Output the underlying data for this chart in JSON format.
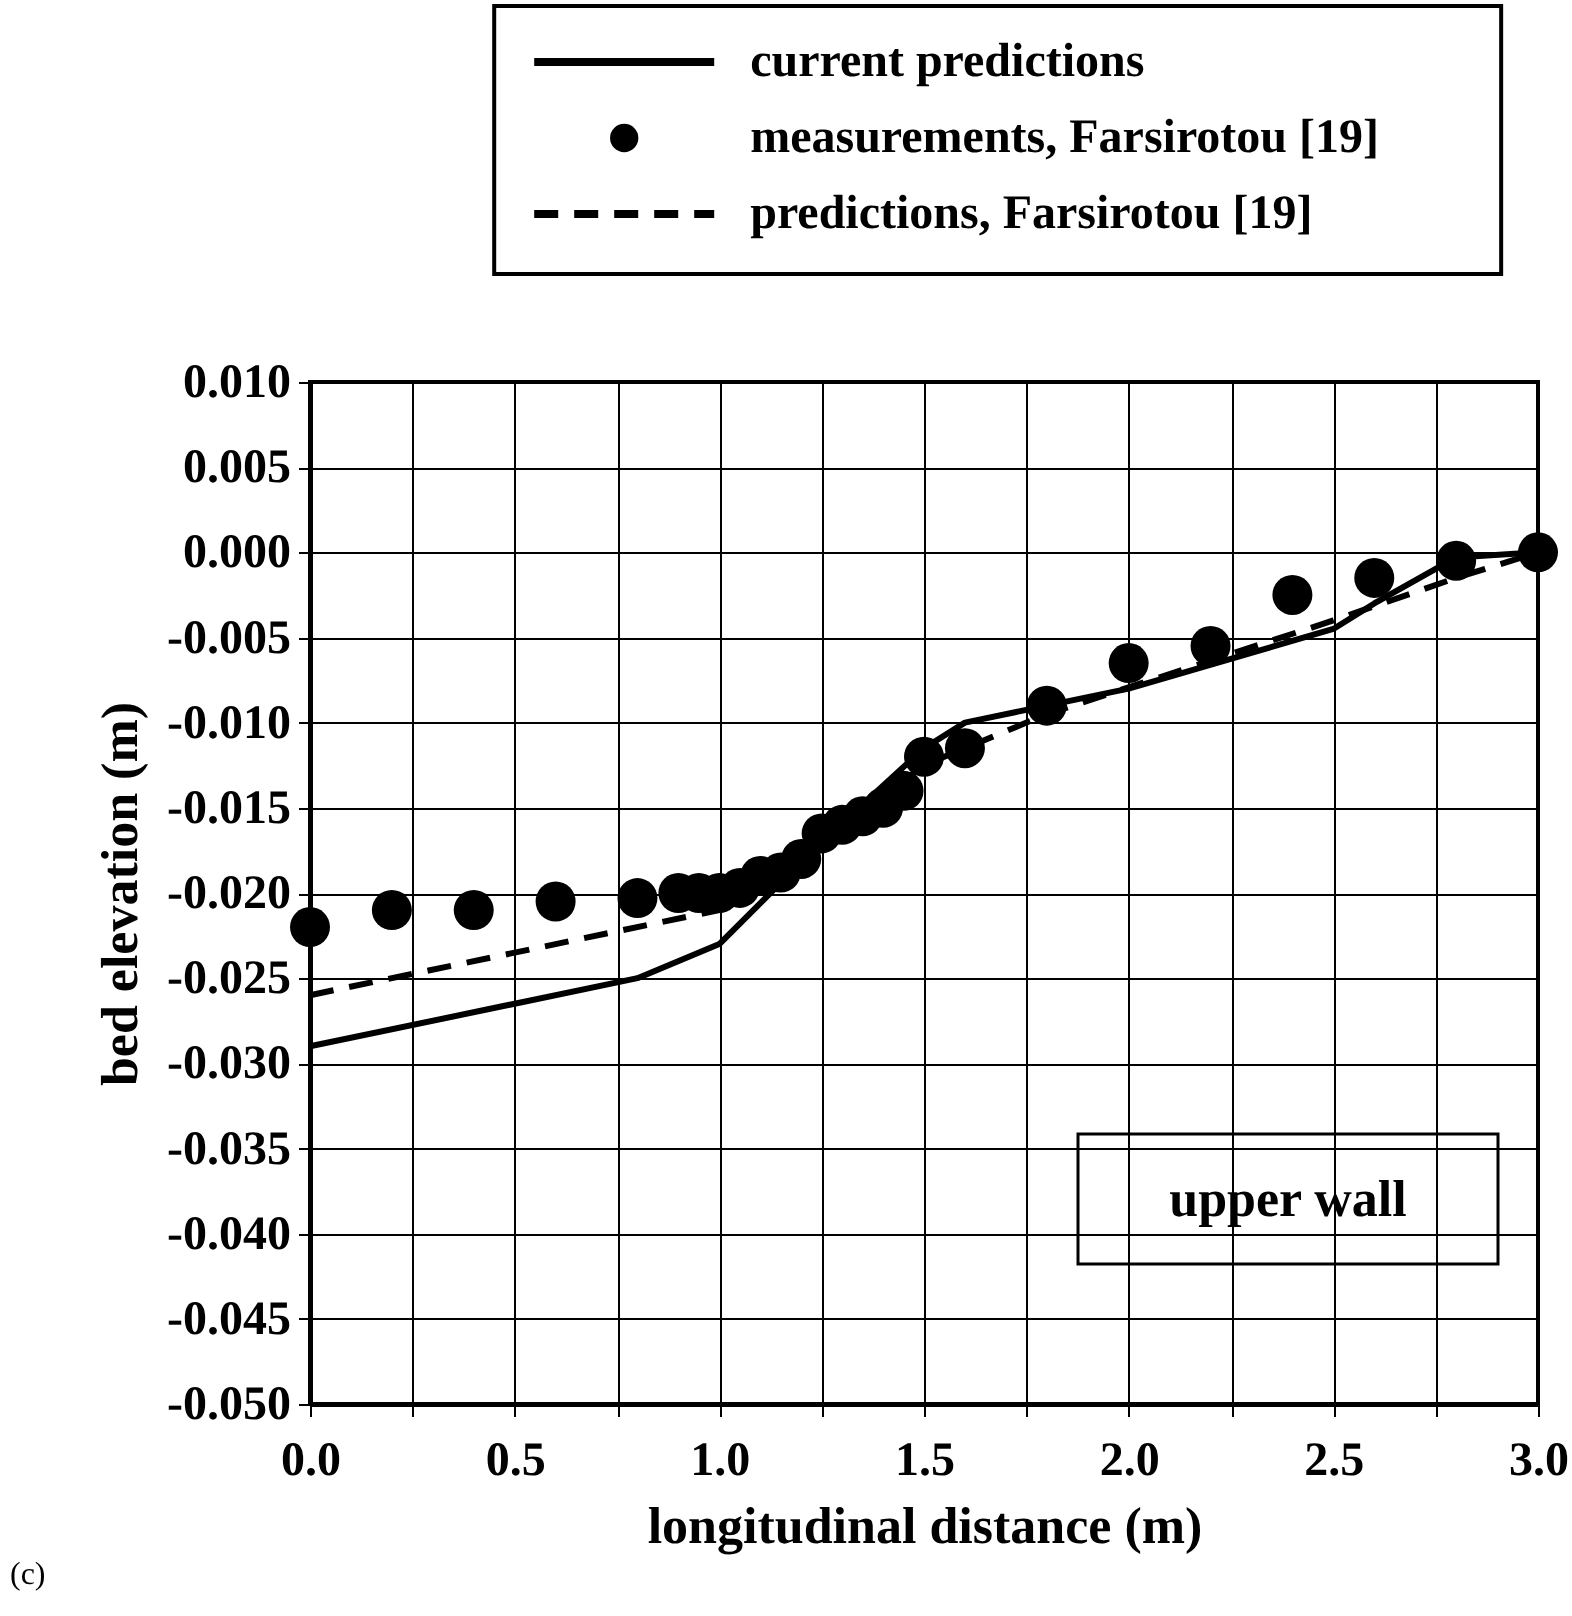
{
  "chart_data": {
    "type": "line",
    "xlabel": "longitudinal distance (m)",
    "ylabel": "bed elevation (m)",
    "xlim": [
      0,
      3
    ],
    "ylim": [
      -0.05,
      0.01
    ],
    "xticks": [
      {
        "value": 0,
        "label": "0.0"
      },
      {
        "value": 0.25,
        "label": null
      },
      {
        "value": 0.5,
        "label": "0.5"
      },
      {
        "value": 0.75,
        "label": null
      },
      {
        "value": 1,
        "label": "1.0"
      },
      {
        "value": 1.25,
        "label": null
      },
      {
        "value": 1.5,
        "label": "1.5"
      },
      {
        "value": 1.75,
        "label": null
      },
      {
        "value": 2,
        "label": "2.0"
      },
      {
        "value": 2.25,
        "label": null
      },
      {
        "value": 2.5,
        "label": "2.5"
      },
      {
        "value": 2.75,
        "label": null
      },
      {
        "value": 3,
        "label": "3.0"
      }
    ],
    "yticks": [
      {
        "value": -0.05,
        "label": "-0.050"
      },
      {
        "value": -0.045,
        "label": "-0.045"
      },
      {
        "value": -0.04,
        "label": "-0.040"
      },
      {
        "value": -0.035,
        "label": "-0.035"
      },
      {
        "value": -0.03,
        "label": "-0.030"
      },
      {
        "value": -0.025,
        "label": "-0.025"
      },
      {
        "value": -0.02,
        "label": "-0.020"
      },
      {
        "value": -0.015,
        "label": "-0.015"
      },
      {
        "value": -0.01,
        "label": "-0.010"
      },
      {
        "value": -0.005,
        "label": "-0.005"
      },
      {
        "value": 0,
        "label": "0.000"
      },
      {
        "value": 0.005,
        "label": "0.005"
      },
      {
        "value": 0.01,
        "label": "0.010"
      }
    ],
    "grid": true,
    "legend": "top",
    "annotations": [
      "upper wall",
      "(c)"
    ],
    "series": [
      {
        "name": "current predictions",
        "line_style": "solid",
        "color": "#000000",
        "x": [
          0,
          0.8,
          1.0,
          1.25,
          1.5,
          1.6,
          2.0,
          2.5,
          2.6,
          2.8,
          3.0
        ],
        "values": [
          -0.029,
          -0.025,
          -0.023,
          -0.017,
          -0.0115,
          -0.01,
          -0.008,
          -0.0045,
          -0.003,
          -0.0003,
          0
        ]
      },
      {
        "name": "measurements, Farsirotou [19]",
        "type": "scatter",
        "marker": "circle",
        "color": "#000000",
        "x": [
          0,
          0.2,
          0.4,
          0.6,
          0.8,
          0.9,
          0.95,
          1.0,
          1.05,
          1.1,
          1.15,
          1.2,
          1.25,
          1.3,
          1.35,
          1.4,
          1.45,
          1.5,
          1.6,
          1.8,
          2.0,
          2.2,
          2.4,
          2.6,
          2.8,
          3.0
        ],
        "values": [
          -0.022,
          -0.021,
          -0.021,
          -0.0205,
          -0.0203,
          -0.02,
          -0.02,
          -0.02,
          -0.0197,
          -0.019,
          -0.0188,
          -0.018,
          -0.0165,
          -0.016,
          -0.0155,
          -0.015,
          -0.014,
          -0.012,
          -0.0115,
          -0.009,
          -0.0065,
          -0.0055,
          -0.0025,
          -0.0015,
          -0.0005,
          0
        ]
      },
      {
        "name": "predictions, Farsirotou [19]",
        "line_style": "dashed",
        "color": "#000000",
        "x": [
          0,
          1.0,
          1.2,
          1.5,
          1.8,
          2.5,
          2.8,
          3.0
        ],
        "values": [
          -0.026,
          -0.021,
          -0.018,
          -0.0125,
          -0.0095,
          -0.004,
          -0.0015,
          0
        ]
      }
    ]
  }
}
